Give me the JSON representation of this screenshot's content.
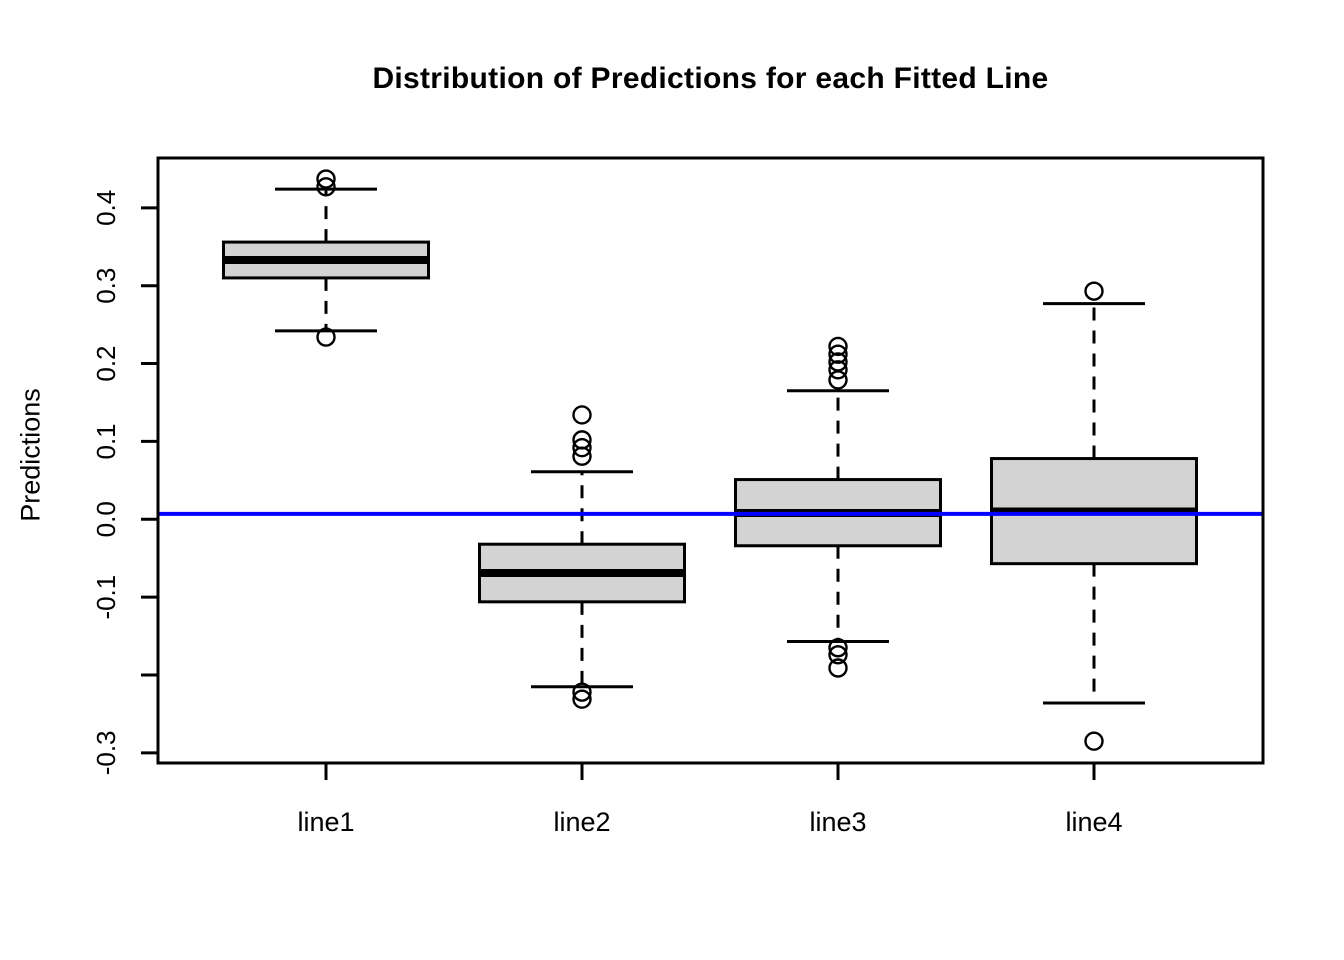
{
  "figure": {
    "background": "#ffffff"
  },
  "chart_data": {
    "type": "boxplot",
    "title": "Distribution of Predictions for each Fitted Line",
    "xlabel": "",
    "ylabel": "Predictions",
    "categories": [
      "line1",
      "line2",
      "line3",
      "line4"
    ],
    "ylim": [
      -0.313,
      0.464
    ],
    "ytick_values": [
      0.4,
      0.3,
      0.2,
      0.1,
      0.0,
      -0.1,
      -0.2,
      -0.3
    ],
    "ytick_labels": [
      "0.4",
      "0.3",
      "0.2",
      "0.1",
      "0.0",
      "-0.1",
      "",
      "-0.3"
    ],
    "grid": false,
    "legend": false,
    "series": [
      {
        "name": "line1",
        "whisker_low": 0.242,
        "q1": 0.31,
        "median": 0.333,
        "q3": 0.356,
        "whisker_high": 0.424,
        "outliers": [
          0.437,
          0.427,
          0.234
        ]
      },
      {
        "name": "line2",
        "whisker_low": -0.215,
        "q1": -0.106,
        "median": -0.069,
        "q3": -0.032,
        "whisker_high": 0.061,
        "outliers": [
          0.134,
          0.102,
          0.092,
          0.081,
          -0.222,
          -0.231
        ]
      },
      {
        "name": "line3",
        "whisker_low": -0.157,
        "q1": -0.034,
        "median": 0.008,
        "q3": 0.051,
        "whisker_high": 0.165,
        "outliers": [
          0.222,
          0.212,
          0.202,
          0.192,
          0.179,
          -0.165,
          -0.174,
          -0.191
        ]
      },
      {
        "name": "line4",
        "whisker_low": -0.236,
        "q1": -0.057,
        "median": 0.01,
        "q3": 0.078,
        "whisker_high": 0.277,
        "outliers": [
          0.293,
          -0.285
        ]
      }
    ],
    "reference_line": {
      "orientation": "horizontal",
      "value": 0.007,
      "color": "#0000ff"
    },
    "colors": {
      "box_fill": "#d3d3d3",
      "box_border": "#000000",
      "median": "#000000",
      "whisker": "#000000",
      "outlier_stroke": "#000000",
      "axis": "#000000"
    }
  }
}
